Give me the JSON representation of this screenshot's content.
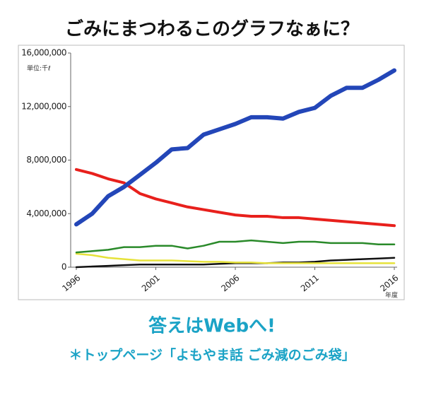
{
  "chart_data": {
    "type": "line",
    "title": "ごみにまつわるこのグラフなぁに？",
    "y_unit": "単位:千ℓ",
    "x_label": "年度",
    "x": [
      1996,
      1997,
      1998,
      1999,
      2000,
      2001,
      2002,
      2003,
      2004,
      2005,
      2006,
      2007,
      2008,
      2009,
      2010,
      2011,
      2012,
      2013,
      2014,
      2015,
      2016
    ],
    "xlim": [
      1996,
      2016
    ],
    "xticks": [
      1996,
      2001,
      2006,
      2011,
      2016
    ],
    "ylim": [
      0,
      16000000
    ],
    "yticks": [
      0,
      {
        "value": 4000000,
        "label": "4,000,000"
      },
      {
        "value": 8000000,
        "label": "8,000,000"
      },
      {
        "value": 12000000,
        "label": "12,000,000"
      },
      {
        "value": 16000000,
        "label": "16,000,000"
      }
    ],
    "series": [
      {
        "color": "#2346b8",
        "values": [
          3200000,
          4000000,
          5300000,
          6000000,
          6900000,
          7800000,
          8800000,
          8900000,
          9900000,
          10300000,
          10700000,
          11200000,
          11200000,
          11100000,
          11600000,
          11900000,
          12800000,
          13400000,
          13400000,
          14000000,
          14700000
        ]
      },
      {
        "color": "#e8201c",
        "values": [
          7300000,
          7000000,
          6600000,
          6300000,
          5500000,
          5100000,
          4800000,
          4500000,
          4300000,
          4100000,
          3900000,
          3800000,
          3800000,
          3700000,
          3700000,
          3600000,
          3500000,
          3400000,
          3300000,
          3200000,
          3100000
        ]
      },
      {
        "color": "#2a8a2a",
        "values": [
          1100000,
          1200000,
          1300000,
          1500000,
          1500000,
          1600000,
          1600000,
          1400000,
          1600000,
          1900000,
          1900000,
          2000000,
          1900000,
          1800000,
          1900000,
          1900000,
          1800000,
          1800000,
          1800000,
          1700000,
          1700000
        ]
      },
      {
        "color": "#e6e23a",
        "values": [
          1000000,
          900000,
          700000,
          600000,
          500000,
          500000,
          500000,
          450000,
          400000,
          400000,
          350000,
          350000,
          300000,
          300000,
          300000,
          300000,
          300000,
          300000,
          300000,
          300000,
          300000
        ]
      },
      {
        "color": "#111111",
        "values": [
          0,
          50000,
          100000,
          150000,
          200000,
          200000,
          200000,
          200000,
          200000,
          250000,
          300000,
          300000,
          300000,
          350000,
          350000,
          400000,
          500000,
          550000,
          600000,
          650000,
          700000
        ]
      }
    ]
  },
  "footer": {
    "cta": "答えはWebへ!",
    "note": "＊トップページ「よもやま話 ごみ減のごみ袋」"
  }
}
